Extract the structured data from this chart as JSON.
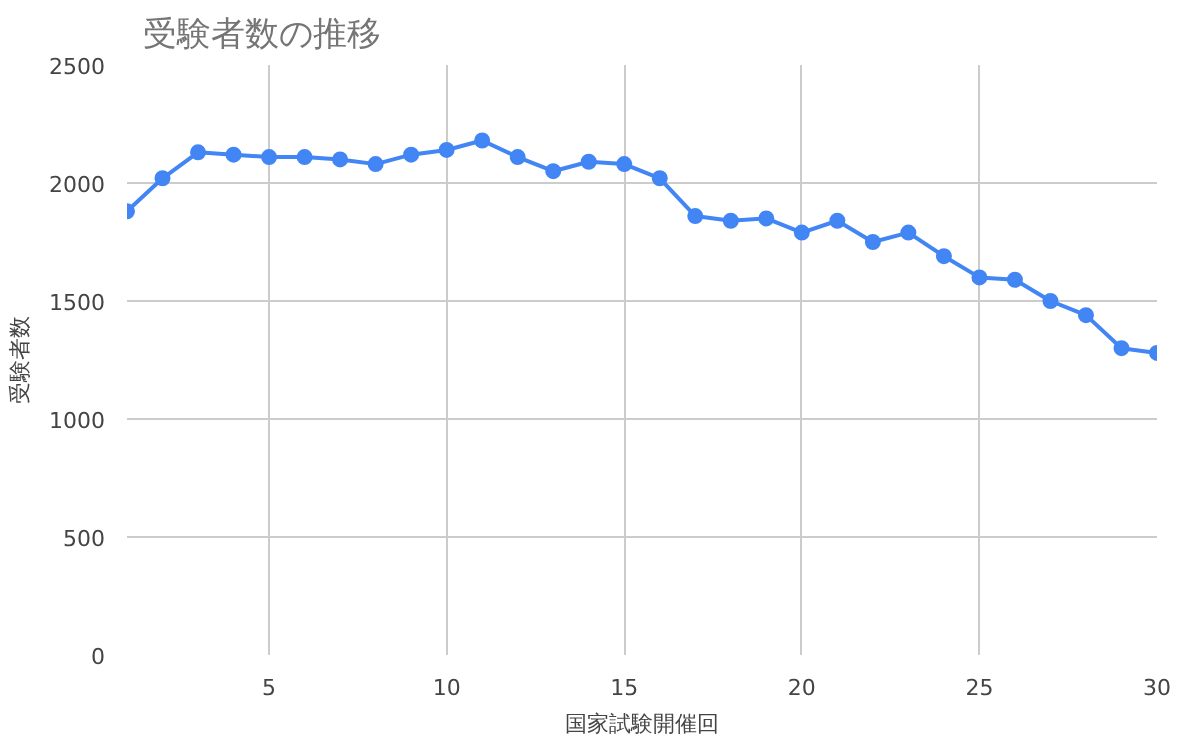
{
  "chart_data": {
    "type": "line",
    "title": "受験者数の推移",
    "xlabel": "国家試験開催回",
    "ylabel": "受験者数",
    "x": [
      1,
      2,
      3,
      4,
      5,
      6,
      7,
      8,
      9,
      10,
      11,
      12,
      13,
      14,
      15,
      16,
      17,
      18,
      19,
      20,
      21,
      22,
      23,
      24,
      25,
      26,
      27,
      28,
      29,
      30
    ],
    "series": [
      {
        "color": "#4285f4",
        "values": [
          1880,
          2020,
          2130,
          2120,
          2110,
          2110,
          2100,
          2080,
          2120,
          2140,
          2180,
          2110,
          2050,
          2090,
          2080,
          2020,
          1860,
          1840,
          1850,
          1790,
          1840,
          1750,
          1790,
          1690,
          1600,
          1590,
          1500,
          1440,
          1300,
          1280
        ]
      }
    ],
    "xlim": [
      1,
      30
    ],
    "xticks": [
      5,
      10,
      15,
      20,
      25,
      30
    ],
    "ylim": [
      0,
      2500
    ],
    "yticks": [
      0,
      500,
      1000,
      1500,
      2000,
      2500
    ],
    "grid": true,
    "marker": "circle",
    "line_style": "solid"
  }
}
